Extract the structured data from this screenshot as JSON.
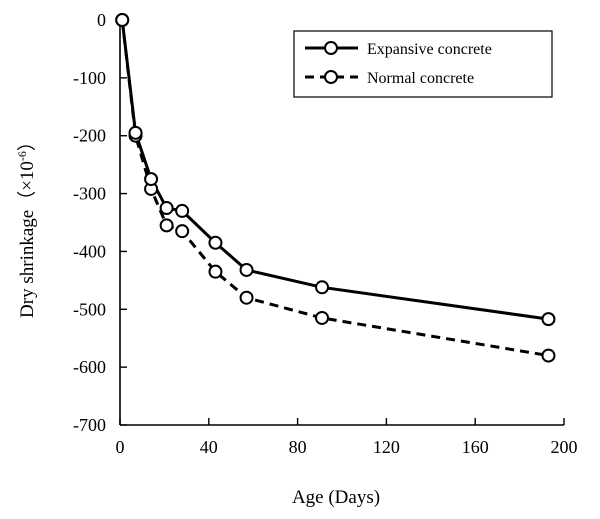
{
  "chart_data": {
    "type": "line",
    "xlabel": "Age (Days)",
    "ylabel": "Dry shrinkage（×10",
    "ylabel_exponent": "-6",
    "ylabel_close": "）",
    "xlim": [
      0,
      200
    ],
    "ylim": [
      -700,
      0
    ],
    "xticks": [
      0,
      40,
      80,
      120,
      160,
      200
    ],
    "yticks": [
      0,
      -100,
      -200,
      -300,
      -400,
      -500,
      -600,
      -700
    ],
    "grid": false,
    "legend_position": "top-right",
    "series": [
      {
        "name": "Expansive concrete",
        "style": "solid",
        "x": [
          1,
          7,
          14,
          21,
          28,
          43,
          57,
          91,
          193
        ],
        "y": [
          0,
          -195,
          -275,
          -325,
          -330,
          -385,
          -432,
          -462,
          -517
        ]
      },
      {
        "name": "Normal concrete",
        "style": "dashed",
        "x": [
          1,
          7,
          14,
          21,
          28,
          43,
          57,
          91,
          193
        ],
        "y": [
          0,
          -200,
          -292,
          -355,
          -365,
          -435,
          -480,
          -515,
          -580
        ]
      }
    ]
  }
}
